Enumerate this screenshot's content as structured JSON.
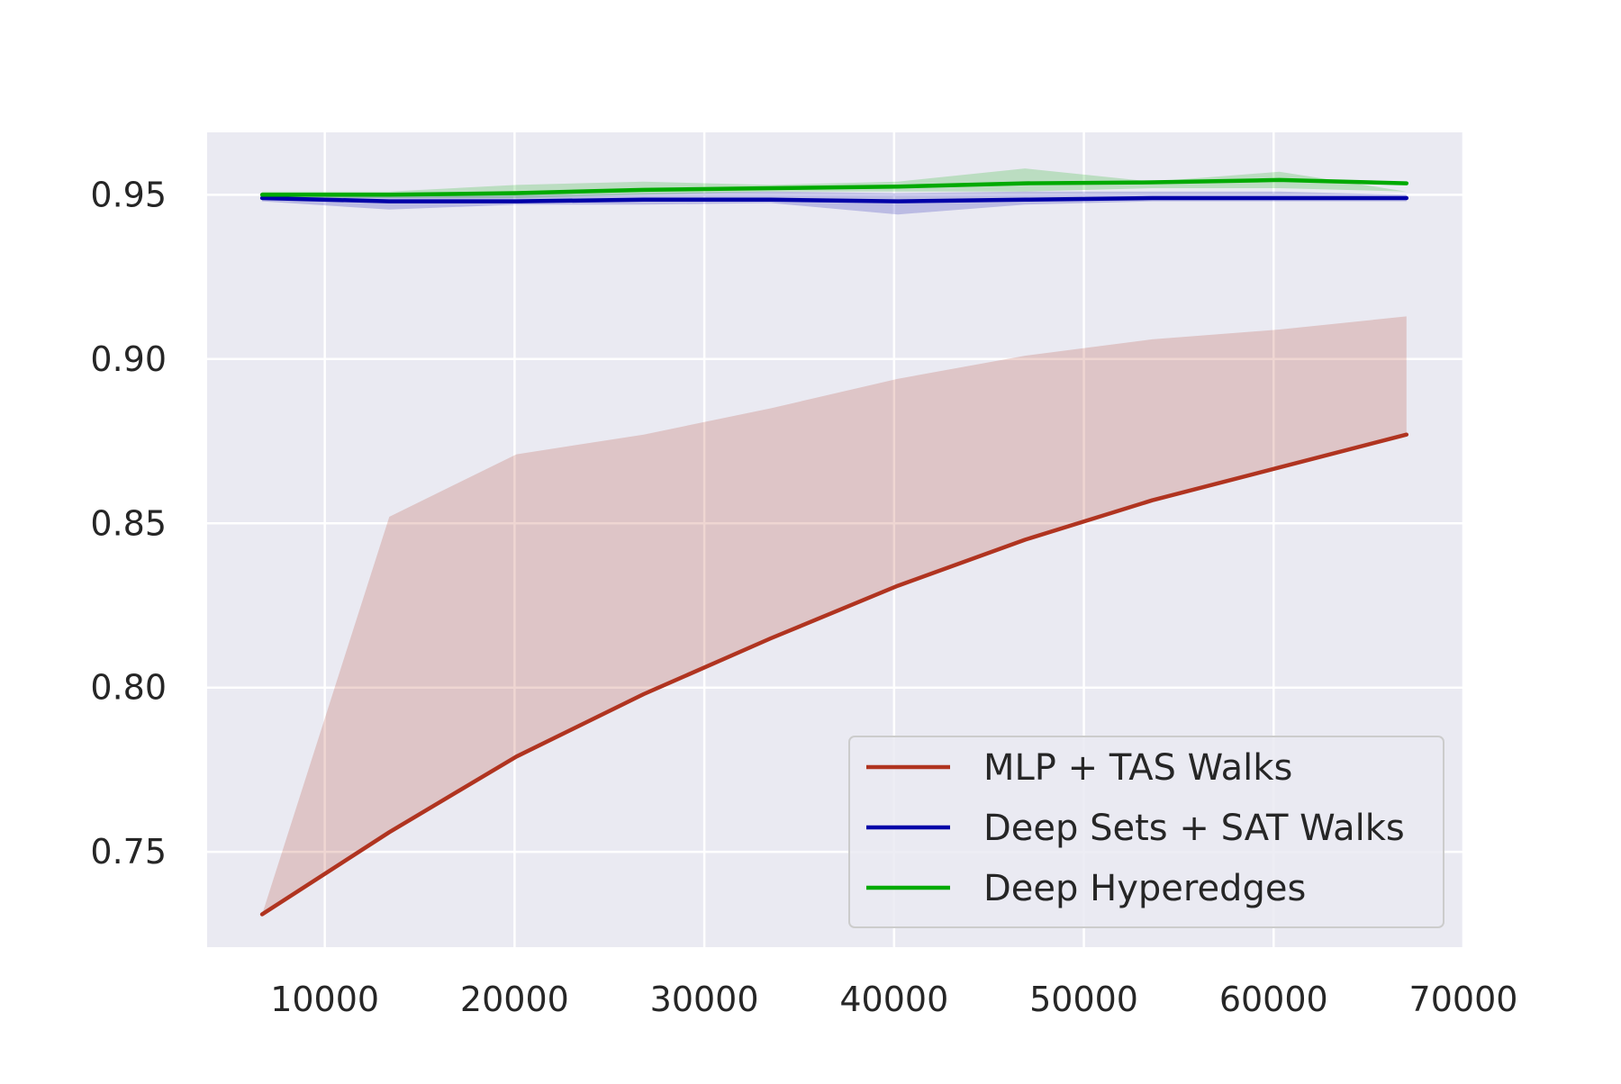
{
  "chart_data": {
    "type": "line",
    "title": "",
    "xlabel": "",
    "ylabel": "",
    "xlim": [
      3800,
      70000
    ],
    "ylim": [
      0.721,
      0.969
    ],
    "x_ticks": [
      10000,
      20000,
      30000,
      40000,
      50000,
      60000,
      70000
    ],
    "x_tick_labels": [
      "10000",
      "20000",
      "30000",
      "40000",
      "50000",
      "60000",
      "70000"
    ],
    "y_ticks": [
      0.75,
      0.8,
      0.85,
      0.9,
      0.95
    ],
    "y_tick_labels": [
      "0.75",
      "0.80",
      "0.85",
      "0.90",
      "0.95"
    ],
    "grid": true,
    "legend_position": "lower-right",
    "x": [
      6700,
      13400,
      20100,
      26800,
      33500,
      40200,
      46900,
      53600,
      60300,
      67000
    ],
    "series": [
      {
        "name": "MLP + TAS Walks",
        "color": "#b03420",
        "values": [
          0.731,
          0.756,
          0.779,
          0.798,
          0.815,
          0.831,
          0.845,
          0.857,
          0.867,
          0.877
        ],
        "upper": [
          0.731,
          0.852,
          0.871,
          0.877,
          0.885,
          0.894,
          0.901,
          0.906,
          0.909,
          0.913
        ],
        "lower": [
          0.731,
          0.756,
          0.779,
          0.798,
          0.815,
          0.831,
          0.845,
          0.857,
          0.867,
          0.877
        ]
      },
      {
        "name": "Deep Sets + SAT Walks",
        "color": "#0000a8",
        "values": [
          0.949,
          0.948,
          0.948,
          0.9485,
          0.9485,
          0.948,
          0.9485,
          0.949,
          0.949,
          0.949
        ],
        "upper": [
          0.95,
          0.95,
          0.95,
          0.9505,
          0.951,
          0.9505,
          0.951,
          0.951,
          0.951,
          0.95
        ],
        "lower": [
          0.948,
          0.9455,
          0.947,
          0.947,
          0.9475,
          0.944,
          0.947,
          0.948,
          0.948,
          0.948
        ]
      },
      {
        "name": "Deep Hyperedges",
        "color": "#00aa00",
        "values": [
          0.95,
          0.95,
          0.9505,
          0.9515,
          0.952,
          0.9525,
          0.9535,
          0.9538,
          0.9545,
          0.9535
        ],
        "upper": [
          0.951,
          0.951,
          0.953,
          0.954,
          0.953,
          0.954,
          0.958,
          0.954,
          0.957,
          0.951
        ],
        "lower": [
          0.949,
          0.949,
          0.949,
          0.95,
          0.951,
          0.951,
          0.951,
          0.952,
          0.952,
          0.951
        ]
      }
    ]
  }
}
